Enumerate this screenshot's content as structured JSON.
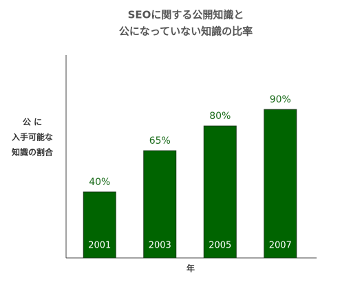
{
  "chart_data": {
    "type": "bar",
    "title": [
      "SEOに関する公開知識と",
      "公になっていない知識の比率"
    ],
    "y_label": [
      "公 に",
      "入手可能な",
      "知識の割合"
    ],
    "x_label": "年",
    "categories": [
      "2001",
      "2003",
      "2005",
      "2007"
    ],
    "values": [
      40,
      65,
      80,
      90
    ],
    "value_labels": [
      "40%",
      "65%",
      "80%",
      "90%"
    ],
    "color": "#006400",
    "ylim": [
      0,
      123
    ]
  }
}
